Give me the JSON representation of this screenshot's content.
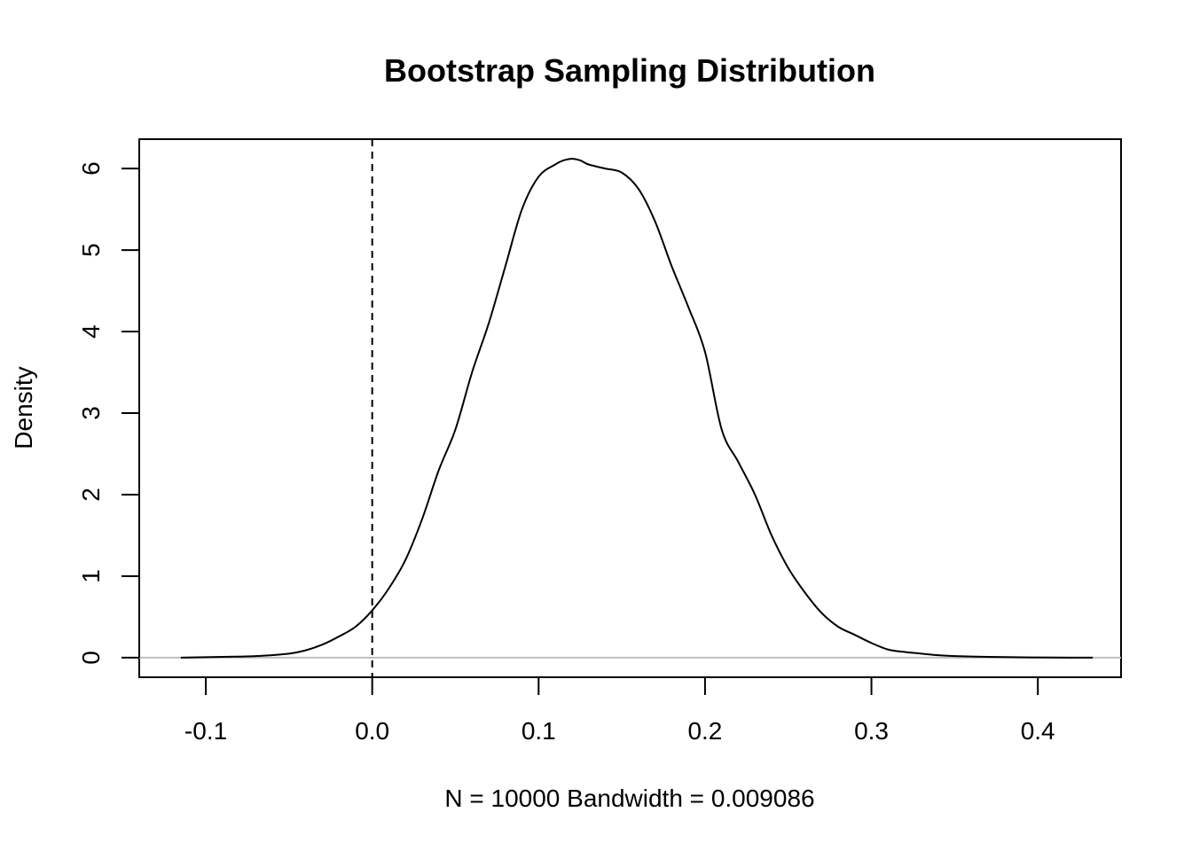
{
  "chart_data": {
    "type": "line",
    "title": "Bootstrap Sampling Distribution",
    "xlabel": "N = 10000   Bandwidth = 0.009086",
    "ylabel": "Density",
    "xlim": [
      -0.14,
      0.45
    ],
    "ylim": [
      -0.24,
      6.36
    ],
    "x_ticks": [
      -0.1,
      0.0,
      0.1,
      0.2,
      0.3,
      0.4
    ],
    "x_tick_labels": [
      "-0.1",
      "0.0",
      "0.1",
      "0.2",
      "0.3",
      "0.4"
    ],
    "y_ticks": [
      0,
      1,
      2,
      3,
      4,
      5,
      6
    ],
    "y_tick_labels": [
      "0",
      "1",
      "2",
      "3",
      "4",
      "5",
      "6"
    ],
    "grid": false,
    "legend": "none",
    "reference_lines": [
      {
        "orientation": "vertical",
        "x": 0.0,
        "style": "dashed",
        "color": "#000000"
      },
      {
        "orientation": "horizontal",
        "y": 0.0,
        "style": "solid",
        "color": "#bebebe"
      }
    ],
    "series": [
      {
        "color": "#000000",
        "x": [
          -0.115,
          -0.09,
          -0.07,
          -0.05,
          -0.04,
          -0.03,
          -0.02,
          -0.01,
          0.0,
          0.01,
          0.02,
          0.03,
          0.04,
          0.05,
          0.06,
          0.07,
          0.08,
          0.09,
          0.1,
          0.11,
          0.115,
          0.12,
          0.125,
          0.13,
          0.14,
          0.15,
          0.16,
          0.17,
          0.18,
          0.19,
          0.2,
          0.21,
          0.22,
          0.23,
          0.24,
          0.25,
          0.26,
          0.27,
          0.28,
          0.29,
          0.3,
          0.31,
          0.32,
          0.33,
          0.34,
          0.35,
          0.37,
          0.39,
          0.41,
          0.433
        ],
        "y": [
          0.0,
          0.01,
          0.02,
          0.05,
          0.09,
          0.16,
          0.26,
          0.38,
          0.58,
          0.85,
          1.2,
          1.7,
          2.3,
          2.8,
          3.5,
          4.1,
          4.8,
          5.5,
          5.9,
          6.05,
          6.1,
          6.12,
          6.1,
          6.05,
          6.0,
          5.95,
          5.75,
          5.35,
          4.8,
          4.3,
          3.75,
          2.8,
          2.4,
          2.0,
          1.5,
          1.1,
          0.8,
          0.55,
          0.38,
          0.28,
          0.18,
          0.1,
          0.07,
          0.05,
          0.03,
          0.02,
          0.01,
          0.005,
          0.002,
          0.0
        ]
      }
    ]
  }
}
